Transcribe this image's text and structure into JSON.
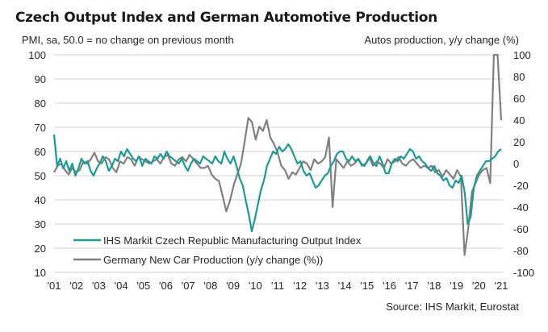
{
  "chart_data": {
    "type": "line",
    "title": "Czech Output Index and German Automotive Production",
    "ylabel_left": "PMI, sa, 50.0 = no change on previous month",
    "ylabel_right": "Autos production, y/y change (%)",
    "source": "Source: IHS Markit, Eurostat",
    "x_ticks": [
      "'01",
      "'02",
      "'03",
      "'04",
      "'05",
      "'06",
      "'07",
      "'08",
      "'09",
      "'10",
      "'11",
      "'12",
      "'13",
      "'14",
      "'15",
      "'16",
      "'17",
      "'18",
      "'19",
      "'20",
      "'21"
    ],
    "y_left_ticks": [
      100,
      90,
      80,
      70,
      60,
      50,
      40,
      30,
      20,
      10
    ],
    "y_right_ticks": [
      100,
      80,
      60,
      40,
      20,
      0,
      -20,
      -40,
      -60,
      -80,
      -100
    ],
    "ylim_left": [
      10,
      100
    ],
    "ylim_right": [
      -100,
      100
    ],
    "grid": true,
    "legend_position": "bottom-left",
    "colors": {
      "czech": "#1a9c94",
      "germany": "#808080",
      "grid": "#d9d9d9",
      "text": "#262626"
    },
    "x_start": 2001.0,
    "x_step": 0.1667,
    "series": [
      {
        "name": "IHS Markit Czech Republic Manufacturing Output Index",
        "axis": "left",
        "values": [
          67,
          54,
          57,
          53,
          56,
          52,
          55,
          50,
          53,
          57,
          55,
          56,
          52,
          50,
          53,
          55,
          58,
          56,
          52,
          54,
          57,
          56,
          60,
          58,
          61,
          59,
          57,
          56,
          58,
          54,
          57,
          56,
          55,
          58,
          57,
          59,
          57,
          60,
          58,
          57,
          56,
          55,
          57,
          54,
          52,
          55,
          57,
          56,
          55,
          58,
          57,
          56,
          55,
          58,
          56,
          55,
          60,
          57,
          55,
          58,
          54,
          49,
          46,
          40,
          34,
          27,
          32,
          38,
          44,
          48,
          54,
          57,
          60,
          59,
          62,
          60,
          61,
          63,
          61,
          58,
          55,
          56,
          52,
          50,
          51,
          48,
          45,
          46,
          48,
          50,
          51,
          54,
          56,
          59,
          60,
          60,
          57,
          56,
          58,
          56,
          57,
          55,
          54,
          56,
          58,
          55,
          54,
          58,
          55,
          51,
          51,
          55,
          57,
          56,
          58,
          57,
          59,
          61,
          60,
          57,
          58,
          56,
          55,
          53,
          52,
          54,
          51,
          50,
          48,
          49,
          46,
          45,
          48,
          47,
          50,
          43,
          30,
          33,
          45,
          50,
          52,
          54,
          56,
          56,
          57,
          58,
          60,
          61
        ],
        "note": "values every 2 months from Jan 2001 to early 2021"
      },
      {
        "name": "Germany New Car Production (y/y change (%))",
        "axis": "right",
        "values": [
          -8,
          -2,
          0,
          -6,
          -10,
          -4,
          -8,
          -6,
          2,
          0,
          4,
          10,
          2,
          0,
          6,
          4,
          -4,
          -8,
          2,
          0,
          6,
          4,
          -2,
          6,
          4,
          2,
          0,
          2,
          4,
          0,
          6,
          8,
          0,
          -2,
          4,
          6,
          2,
          8,
          4,
          0,
          -4,
          -4,
          -2,
          -10,
          -14,
          -16,
          -30,
          -44,
          -34,
          -20,
          -10,
          0,
          20,
          42,
          38,
          22,
          34,
          30,
          40,
          24,
          18,
          10,
          -2,
          -6,
          -14,
          -8,
          -10,
          -4,
          2,
          0,
          -6,
          4,
          0,
          2,
          6,
          24,
          -40,
          4,
          0,
          -4,
          2,
          -2,
          0,
          4,
          -2,
          0,
          6,
          -2,
          2,
          0,
          -4,
          4,
          0,
          2,
          6,
          0,
          -2,
          2,
          4,
          0,
          -4,
          -2,
          -4,
          -2,
          -8,
          -6,
          -12,
          -6,
          -10,
          -14,
          -6,
          -12,
          -84,
          -60,
          -26,
          -18,
          -10,
          -6,
          -4,
          -18,
          100,
          100,
          40
        ]
      }
    ]
  },
  "legend": [
    "IHS Markit Czech Republic Manufacturing Output Index",
    "Germany New Car Production (y/y change (%))"
  ]
}
